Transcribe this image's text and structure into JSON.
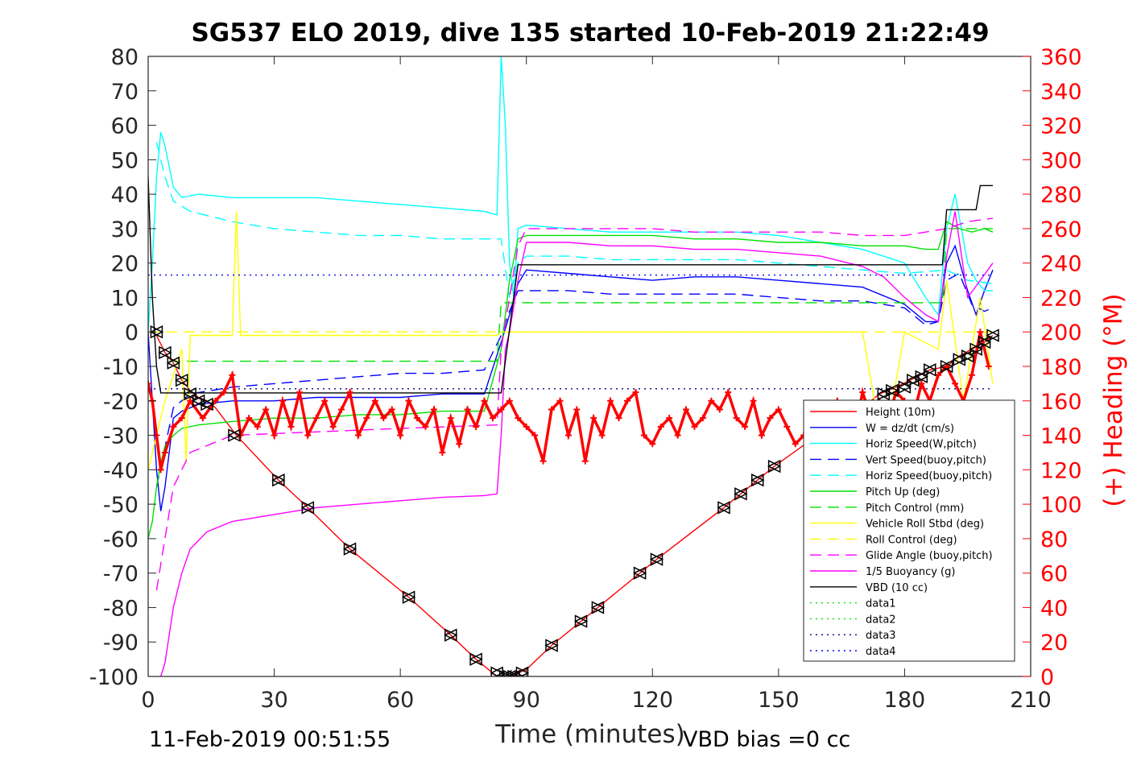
{
  "chart_data": {
    "type": "line",
    "title": "SG537 ELO 2019, dive 135 started 10-Feb-2019 21:22:49",
    "xlabel": "Time (minutes)",
    "ylabel": "",
    "y2label": "(+) Heading (°M)",
    "xlim": [
      0,
      210
    ],
    "ylim": [
      -100,
      80
    ],
    "y2lim": [
      0,
      360
    ],
    "xticks": [
      "0",
      "30",
      "60",
      "90",
      "120",
      "150",
      "180",
      "210"
    ],
    "yticks": [
      "80",
      "70",
      "60",
      "50",
      "40",
      "30",
      "20",
      "10",
      "0",
      "-10",
      "-20",
      "-30",
      "-40",
      "-50",
      "-60",
      "-70",
      "-80",
      "-90",
      "-100"
    ],
    "y2ticks": [
      "360",
      "340",
      "320",
      "300",
      "280",
      "260",
      "240",
      "220",
      "200",
      "180",
      "160",
      "140",
      "120",
      "100",
      "80",
      "60",
      "40",
      "20",
      "0"
    ],
    "grid": false,
    "legend_position": "bottom-right",
    "footer_left": "11-Feb-2019 00:51:55",
    "footer_right": "VBD bias =0 cc",
    "series": [
      {
        "name": "Height (10m)",
        "color": "#ff0000",
        "style": "solid",
        "x": [
          1,
          2,
          4,
          6,
          8,
          10,
          12,
          14,
          16,
          21,
          31,
          38,
          48,
          62,
          72,
          78,
          83,
          86,
          88,
          90,
          96,
          103,
          107,
          117,
          121,
          137,
          141,
          145,
          149,
          157,
          168,
          174,
          178,
          183,
          186,
          190,
          193,
          196,
          199,
          201
        ],
        "y": [
          0,
          -1,
          -6,
          -9,
          -14,
          -17,
          -19,
          -20,
          -22,
          -30,
          -43,
          -51,
          -63,
          -77,
          -88,
          -95,
          -100,
          -100,
          -99,
          -98,
          -91,
          -84,
          -80,
          -70,
          -66,
          -51,
          -47,
          -43,
          -39,
          -32,
          -24,
          -18,
          -16,
          -13,
          -11,
          -10,
          -7,
          -5,
          -3,
          -1
        ]
      },
      {
        "name": "W = dz/dt (cm/s)",
        "color": "#0000ff",
        "style": "solid",
        "x": [
          0,
          1,
          2,
          3,
          4,
          6,
          8,
          12,
          20,
          30,
          40,
          50,
          60,
          70,
          80,
          84,
          86,
          88,
          90,
          100,
          110,
          120,
          130,
          140,
          150,
          160,
          170,
          180,
          185,
          188,
          190,
          192,
          195,
          197,
          199,
          201
        ],
        "y": [
          0,
          -20,
          -40,
          -52,
          -45,
          -25,
          -23,
          -21,
          -20,
          -20,
          -19,
          -19,
          -19,
          -18,
          -18,
          -3,
          5,
          14,
          18,
          17,
          16,
          15,
          16,
          16,
          15,
          14,
          13,
          8,
          3,
          3,
          20,
          25,
          12,
          5,
          12,
          18
        ]
      },
      {
        "name": "Horiz Speed(W,pitch)",
        "color": "#00ffff",
        "style": "solid",
        "x": [
          0,
          1,
          2,
          3,
          4,
          6,
          8,
          12,
          20,
          30,
          40,
          50,
          60,
          70,
          80,
          83,
          84,
          85,
          86,
          87,
          88,
          90,
          100,
          110,
          120,
          130,
          140,
          150,
          160,
          170,
          180,
          185,
          188,
          190,
          192,
          195,
          197,
          199,
          201
        ],
        "y": [
          0,
          20,
          45,
          58,
          54,
          42,
          39,
          40,
          39,
          39,
          39,
          38,
          37,
          36,
          35,
          34,
          80,
          60,
          20,
          10,
          30,
          31,
          30,
          29,
          29,
          29,
          29,
          28,
          26,
          24,
          20,
          10,
          5,
          30,
          40,
          20,
          15,
          12,
          12
        ]
      },
      {
        "name": "Vert Speed(buoy,pitch)",
        "color": "#0000ff",
        "style": "dashed",
        "x": [
          2,
          6,
          10,
          20,
          30,
          40,
          50,
          60,
          70,
          80,
          84,
          86,
          88,
          90,
          100,
          110,
          120,
          130,
          140,
          150,
          160,
          170,
          180,
          185,
          188,
          190,
          193,
          196,
          199,
          201
        ],
        "y": [
          -45,
          -22,
          -18,
          -16,
          -15,
          -14,
          -13,
          -12,
          -12,
          -11,
          -1,
          6,
          12,
          12,
          12,
          11,
          11,
          11,
          11,
          10,
          9,
          9,
          7,
          2,
          3,
          15,
          17,
          8,
          6,
          7
        ]
      },
      {
        "name": "Horiz Speed(buoy,pitch)",
        "color": "#00ffff",
        "style": "dashed",
        "x": [
          2,
          4,
          6,
          10,
          20,
          30,
          40,
          50,
          60,
          70,
          80,
          84,
          86,
          88,
          90,
          100,
          110,
          120,
          130,
          140,
          150,
          160,
          170,
          180,
          190,
          195,
          201
        ],
        "y": [
          55,
          45,
          38,
          35,
          32,
          30,
          29,
          28,
          28,
          27,
          27,
          27,
          10,
          20,
          22,
          22,
          21,
          21,
          21,
          21,
          20,
          19,
          18,
          17,
          18,
          15,
          14
        ]
      },
      {
        "name": "Pitch Up (deg)",
        "color": "#00e000",
        "style": "solid",
        "x": [
          0,
          1,
          2,
          3,
          4,
          6,
          8,
          12,
          20,
          30,
          40,
          50,
          60,
          70,
          80,
          84,
          86,
          88,
          90,
          100,
          110,
          120,
          130,
          140,
          150,
          160,
          170,
          180,
          185,
          188,
          190,
          193,
          196,
          199,
          201
        ],
        "y": [
          -60,
          -55,
          -45,
          -38,
          -33,
          -30,
          -28,
          -27,
          -26,
          -25,
          -25,
          -24,
          -24,
          -23,
          -23,
          -5,
          15,
          27,
          28,
          28,
          28,
          28,
          27,
          27,
          26,
          26,
          25,
          25,
          24,
          24,
          32,
          30,
          29,
          30,
          29
        ]
      },
      {
        "name": "Pitch Control (mm)",
        "color": "#00e000",
        "style": "dashed",
        "x": [
          5,
          20,
          40,
          60,
          83,
          84,
          88,
          90,
          120,
          150,
          180,
          189,
          190,
          201
        ],
        "y": [
          -8.5,
          -8.5,
          -8.5,
          -8.5,
          -8.5,
          8.5,
          8.5,
          8.5,
          8.5,
          8.5,
          8.5,
          8.5,
          30,
          30
        ]
      },
      {
        "name": "Vehicle Roll Stbd (deg)",
        "color": "#ffff00",
        "style": "solid",
        "x": [
          0,
          4,
          8,
          9,
          10,
          20,
          21,
          22,
          30,
          40,
          50,
          60,
          70,
          80,
          83,
          84,
          88,
          90,
          100,
          110,
          120,
          130,
          140,
          150,
          160,
          170,
          175,
          180,
          188,
          190,
          194,
          198,
          201
        ],
        "y": [
          -40,
          -20,
          -5,
          -38,
          -1,
          -1,
          35,
          -1,
          -1,
          -1,
          -1,
          -1,
          -1,
          -1,
          -1,
          0,
          0,
          0,
          0,
          0,
          0,
          0,
          0,
          0,
          0,
          0,
          -35,
          0,
          -5,
          15,
          -20,
          10,
          -15
        ]
      },
      {
        "name": "Roll Control (deg)",
        "color": "#ffff00",
        "style": "dashed",
        "x": [
          0,
          5,
          10,
          30,
          60,
          84,
          90,
          120,
          150,
          180,
          201
        ],
        "y": [
          0,
          0,
          0,
          0,
          0,
          0,
          0,
          0,
          0,
          0,
          0
        ]
      },
      {
        "name": "Glide Angle (buoy,pitch)",
        "color": "#ff00ff",
        "style": "dashed",
        "x": [
          2,
          6,
          10,
          20,
          40,
          60,
          83,
          84,
          86,
          88,
          90,
          100,
          110,
          120,
          130,
          140,
          150,
          160,
          170,
          180,
          185,
          190,
          195,
          201
        ],
        "y": [
          -75,
          -45,
          -35,
          -30,
          -29,
          -28,
          -27,
          -5,
          10,
          25,
          30,
          30,
          30,
          30,
          29,
          29,
          29,
          29,
          28,
          28,
          29,
          30,
          32,
          33
        ]
      },
      {
        "name": "1/5 Buoyancy (g)",
        "color": "#ff00ff",
        "style": "solid",
        "x": [
          3,
          4,
          5,
          6,
          7,
          8,
          10,
          14,
          20,
          30,
          40,
          50,
          60,
          70,
          80,
          83,
          84,
          85,
          86,
          88,
          90,
          100,
          110,
          120,
          130,
          140,
          150,
          160,
          170,
          175,
          180,
          185,
          188,
          190,
          192,
          195,
          198,
          201
        ],
        "y": [
          -100,
          -96,
          -88,
          -80,
          -75,
          -70,
          -63,
          -58,
          -55,
          -53,
          -51,
          -50,
          -49,
          -48,
          -47.5,
          -47,
          -30,
          -5,
          0,
          15,
          26,
          26,
          25,
          25,
          24,
          24,
          23,
          22,
          19,
          16,
          10,
          5,
          3,
          22,
          35,
          10,
          15,
          20
        ]
      },
      {
        "name": "VBD (10 cc)",
        "color": "#000000",
        "style": "solid",
        "x": [
          0,
          1,
          2,
          3,
          83,
          84,
          88,
          90,
          189,
          190,
          197,
          198,
          201
        ],
        "y": [
          45,
          10,
          -10,
          -17.7,
          -17.7,
          -17.7,
          19.5,
          19.5,
          19.5,
          35.5,
          35.5,
          42.5,
          42.5
        ]
      },
      {
        "name": "data1",
        "color": "#00e000",
        "style": "dotted",
        "x": [],
        "y": []
      },
      {
        "name": "data2",
        "color": "#00e000",
        "style": "dotted",
        "x": [],
        "y": []
      },
      {
        "name": "data3",
        "color": "#000080",
        "style": "dotted",
        "x": [
          0,
          201
        ],
        "y": [
          -16.5,
          -16.5
        ]
      },
      {
        "name": "data4",
        "color": "#0000ff",
        "style": "dotted",
        "x": [
          0,
          201
        ],
        "y": [
          16.5,
          16.5
        ]
      }
    ],
    "heading_series": {
      "name": "Heading",
      "color": "#ff0000",
      "axis": "right",
      "x": [
        0,
        1,
        2,
        3,
        4,
        6,
        8,
        10,
        13,
        16,
        18,
        20,
        22,
        24,
        26,
        28,
        30,
        32,
        34,
        36,
        38,
        40,
        42,
        44,
        46,
        48,
        50,
        52,
        54,
        56,
        58,
        60,
        62,
        64,
        66,
        68,
        70,
        72,
        74,
        76,
        78,
        80,
        82,
        84,
        86,
        88,
        90,
        92,
        94,
        96,
        98,
        100,
        102,
        104,
        106,
        108,
        110,
        112,
        114,
        116,
        118,
        120,
        122,
        124,
        126,
        128,
        130,
        132,
        134,
        136,
        138,
        140,
        142,
        144,
        146,
        148,
        150,
        152,
        154,
        156,
        158,
        160,
        162,
        164,
        166,
        168,
        170,
        172,
        174,
        176,
        178,
        180,
        182,
        184,
        186,
        188,
        190,
        192,
        194,
        196,
        198,
        200
      ],
      "y": [
        170,
        160,
        140,
        120,
        130,
        145,
        150,
        160,
        150,
        160,
        165,
        175,
        140,
        150,
        145,
        155,
        140,
        160,
        145,
        165,
        140,
        150,
        160,
        145,
        155,
        165,
        140,
        150,
        160,
        150,
        155,
        140,
        160,
        150,
        145,
        155,
        130,
        150,
        135,
        155,
        145,
        160,
        150,
        155,
        160,
        150,
        145,
        140,
        125,
        155,
        160,
        140,
        155,
        125,
        150,
        140,
        160,
        150,
        160,
        165,
        140,
        135,
        145,
        150,
        140,
        155,
        145,
        150,
        160,
        155,
        165,
        150,
        145,
        160,
        140,
        150,
        155,
        145,
        135,
        140,
        130,
        155,
        145,
        160,
        150,
        140,
        165,
        150,
        160,
        150,
        165,
        160,
        150,
        170,
        160,
        175,
        180,
        170,
        160,
        175,
        200,
        180
      ]
    },
    "markers": {
      "series": "Height (10m)",
      "x": [
        2,
        4,
        6,
        8,
        10,
        12,
        14,
        20.5,
        31,
        38,
        48,
        62,
        72,
        78,
        83,
        85,
        86,
        87,
        89,
        96,
        103,
        107,
        117,
        121,
        137,
        141,
        145,
        149,
        166,
        170,
        175,
        177,
        180,
        182,
        184,
        186,
        190,
        193,
        195,
        197,
        199,
        201
      ],
      "y": [
        0,
        -6,
        -9,
        -14,
        -18,
        -20,
        -21,
        -30,
        -43,
        -51,
        -63,
        -77,
        -88,
        -95,
        -99,
        -100,
        -100,
        -100,
        -99,
        -91,
        -84,
        -80,
        -70,
        -66,
        -51,
        -47,
        -43,
        -39,
        -32,
        -24,
        -18,
        -17,
        -16,
        -14,
        -13,
        -11,
        -10,
        -8,
        -7,
        -5,
        -3,
        -1
      ]
    }
  }
}
